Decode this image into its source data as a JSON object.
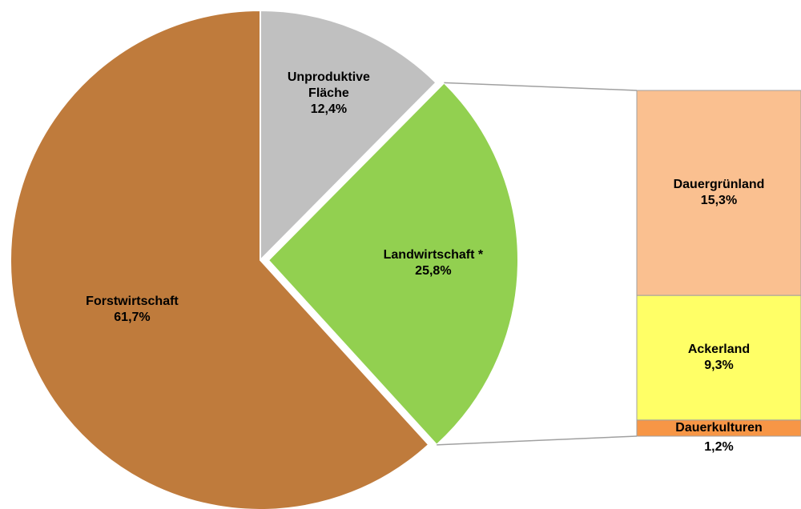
{
  "chart_data": [
    {
      "type": "pie",
      "categories": [
        "Unproduktive Fläche",
        "Landwirtschaft *",
        "Forstwirtschaft"
      ],
      "values": [
        12.4,
        25.8,
        61.7
      ],
      "value_labels": [
        "12,4%",
        "25,8%",
        "61,7%"
      ],
      "colors": [
        "#c0c0c0",
        "#92d050",
        "#bf7b3c"
      ]
    },
    {
      "type": "stacked_bar",
      "categories": [
        "Dauergrünland",
        "Ackerland",
        "Dauerkulturen"
      ],
      "values": [
        15.3,
        9.3,
        1.2
      ],
      "value_labels": [
        "15,3%",
        "9,3%",
        "1,2%"
      ],
      "colors": [
        "#fac090",
        "#ffff66",
        "#f79646"
      ]
    }
  ]
}
